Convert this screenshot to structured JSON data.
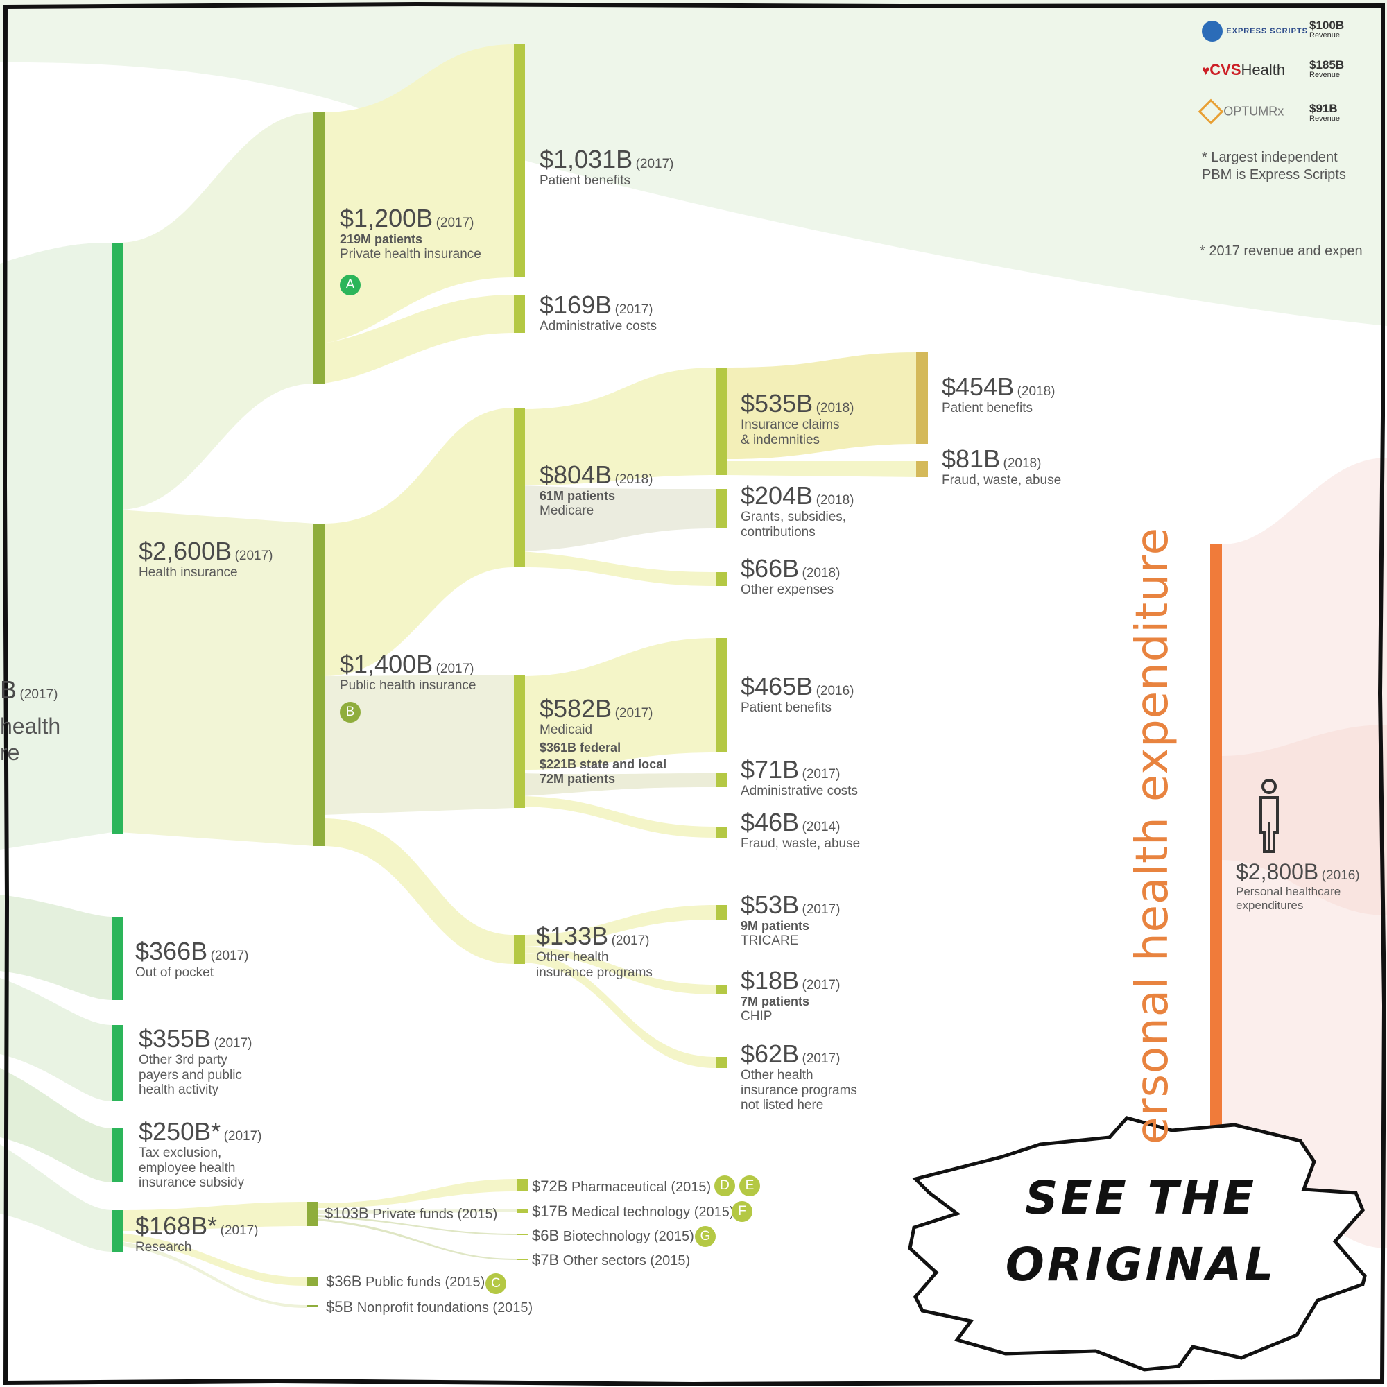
{
  "root": {
    "value_frag": "B",
    "year": "(2017)",
    "label_line1": "health",
    "label_line2": "re"
  },
  "health_insurance": {
    "value": "$2,600B",
    "year": "(2017)",
    "label": "Health insurance"
  },
  "private_hi": {
    "value": "$1,200B",
    "year": "(2017)",
    "patients": "219M patients",
    "label": "Private health insurance",
    "badge": "A"
  },
  "private_benefits": {
    "value": "$1,031B",
    "year": "(2017)",
    "label": "Patient benefits"
  },
  "private_admin": {
    "value": "$169B",
    "year": "(2017)",
    "label": "Administrative costs"
  },
  "public_hi": {
    "value": "$1,400B",
    "year": "(2017)",
    "label": "Public health insurance",
    "badge": "B"
  },
  "medicare": {
    "value": "$804B",
    "year": "(2018)",
    "patients": "61M patients",
    "label": "Medicare"
  },
  "medicare_claims": {
    "value": "$535B",
    "year": "(2018)",
    "line1": "Insurance claims",
    "line2": "& indemnities"
  },
  "medicare_claims_benefits": {
    "value": "$454B",
    "year": "(2018)",
    "label": "Patient benefits"
  },
  "medicare_claims_fraud": {
    "value": "$81B",
    "year": "(2018)",
    "label": "Fraud, waste, abuse"
  },
  "medicare_grants": {
    "value": "$204B",
    "year": "(2018)",
    "line1": "Grants, subsidies,",
    "line2": "contributions"
  },
  "medicare_other": {
    "value": "$66B",
    "year": "(2018)",
    "label": "Other expenses"
  },
  "medicaid": {
    "value": "$582B",
    "year": "(2017)",
    "label": "Medicaid",
    "line1": "$361B federal",
    "line2": "$221B state and local",
    "line3": "72M patients"
  },
  "medicaid_benefits": {
    "value": "$465B",
    "year": "(2016)",
    "label": "Patient benefits"
  },
  "medicaid_admin": {
    "value": "$71B",
    "year": "(2017)",
    "label": "Administrative costs"
  },
  "medicaid_fraud": {
    "value": "$46B",
    "year": "(2014)",
    "label": "Fraud, waste, abuse"
  },
  "other_hip": {
    "value": "$133B",
    "year": "(2017)",
    "line1": "Other health",
    "line2": "insurance programs"
  },
  "tricare": {
    "value": "$53B",
    "year": "(2017)",
    "patients": "9M patients",
    "label": "TRICARE"
  },
  "chip": {
    "value": "$18B",
    "year": "(2017)",
    "patients": "7M patients",
    "label": "CHIP"
  },
  "other_not_listed": {
    "value": "$62B",
    "year": "(2017)",
    "line1": "Other health",
    "line2": "insurance programs",
    "line3": "not listed here"
  },
  "out_of_pocket": {
    "value": "$366B",
    "year": "(2017)",
    "label": "Out of pocket"
  },
  "other_3rd": {
    "value": "$355B",
    "year": "(2017)",
    "line1": "Other 3rd party",
    "line2": "payers and public",
    "line3": "health activity"
  },
  "tax_exclusion": {
    "value": "$250B*",
    "year": "(2017)",
    "line1": "Tax exclusion,",
    "line2": "employee health",
    "line3": "insurance subsidy"
  },
  "research": {
    "value": "$168B*",
    "year": "(2017)",
    "label": "Research"
  },
  "private_funds": {
    "value": "$103B",
    "label": "Private funds (2015)"
  },
  "pharma": {
    "value": "$72B",
    "label": "Pharmaceutical (2015)",
    "badge1": "D",
    "badge2": "E"
  },
  "medtech": {
    "value": "$17B",
    "label": "Medical technology (2015)",
    "badge": "F"
  },
  "biotech": {
    "value": "$6B",
    "label": "Biotechnology (2015)",
    "badge": "G"
  },
  "other_sectors": {
    "value": "$7B",
    "label": "Other sectors (2015)"
  },
  "public_funds": {
    "value": "$36B",
    "label": "Public funds (2015)",
    "badge": "C"
  },
  "nonprofit": {
    "value": "$5B",
    "label": "Nonprofit foundations (2015)"
  },
  "personal": {
    "vertical": "ersonal health expenditure",
    "value": "$2,800B",
    "year": "(2016)",
    "line1": "Personal healthcare",
    "line2": "expenditures"
  },
  "legend": {
    "express": {
      "logo": "EXPRESS SCRIPTS",
      "rev": "$100B",
      "rev_label": "Revenue"
    },
    "cvs": {
      "logo_a": "CVS",
      "logo_b": "Health",
      "rev": "$185B",
      "rev_label": "Revenue"
    },
    "optum": {
      "logo": "OPTUMRx",
      "rev": "$91B",
      "rev_label": "Revenue"
    },
    "note1_line1": "* Largest independent",
    "note1_line2": "PBM is Express Scripts",
    "note2": "* 2017 revenue and expen"
  },
  "burst": {
    "line1": "SEE THE",
    "line2": "ORIGINAL"
  },
  "colors": {
    "green": "#2cb55a",
    "olive": "#8fad3c",
    "lime": "#b4c844",
    "gold": "#d4b95a",
    "orange": "#f07b3a",
    "flow_yellow": "#f4f5c8",
    "flow_green": "#eaf4e6",
    "flow_pink": "#fbe9e6"
  }
}
